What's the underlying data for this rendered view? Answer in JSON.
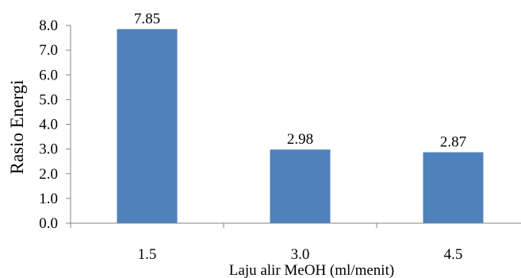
{
  "chart_data": {
    "type": "bar",
    "categories": [
      "1.5",
      "3.0",
      "4.5"
    ],
    "values": [
      7.85,
      2.98,
      2.87
    ],
    "data_labels": [
      "7.85",
      "2.98",
      "2.87"
    ],
    "title": "",
    "xlabel": "Laju alir MeOH (ml/menit)",
    "ylabel": "Rasio Energi",
    "ylim": [
      0,
      8
    ],
    "yticks": [
      "0.0",
      "1.0",
      "2.0",
      "3.0",
      "4.0",
      "5.0",
      "6.0",
      "7.0",
      "8.0"
    ],
    "grid": false,
    "legend": "none",
    "bar_color": "#4f81bd"
  }
}
